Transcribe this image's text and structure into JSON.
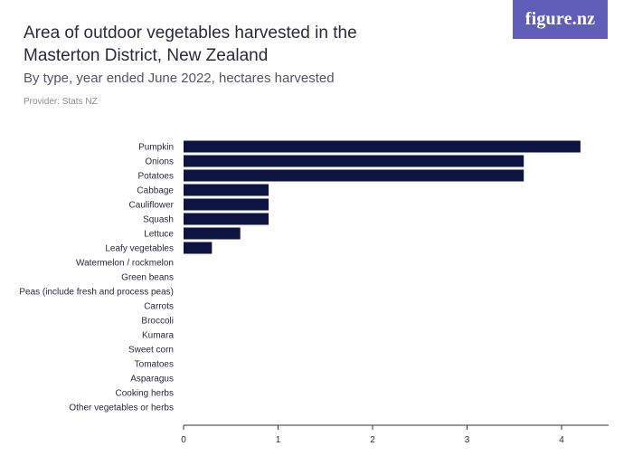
{
  "header": {
    "title": "Area of outdoor vegetables harvested in the Masterton District, New Zealand",
    "subtitle": "By type, year ended June 2022, hectares harvested",
    "provider": "Provider: Stats NZ",
    "logo_text": "figure.nz"
  },
  "colors": {
    "bar": "#0d1442",
    "logo_bg": "#5f5db8",
    "axis": "#333344"
  },
  "chart_data": {
    "type": "bar",
    "orientation": "horizontal",
    "categories": [
      "Pumpkin",
      "Onions",
      "Potatoes",
      "Cabbage",
      "Cauliflower",
      "Squash",
      "Lettuce",
      "Leafy vegetables",
      "Watermelon / rockmelon",
      "Green beans",
      "Peas (include fresh and process peas)",
      "Carrots",
      "Broccoli",
      "Kumara",
      "Sweet corn",
      "Tomatoes",
      "Asparagus",
      "Cooking herbs",
      "Other vegetables or herbs"
    ],
    "values": [
      4.2,
      3.6,
      3.6,
      0.9,
      0.9,
      0.9,
      0.6,
      0.3,
      0,
      0,
      0,
      0,
      0,
      0,
      0,
      0,
      0,
      0,
      0
    ],
    "xlim": [
      0,
      4.5
    ],
    "xticks": [
      0,
      1,
      2,
      3,
      4
    ],
    "xlabel": "",
    "ylabel": "",
    "grid": false
  }
}
